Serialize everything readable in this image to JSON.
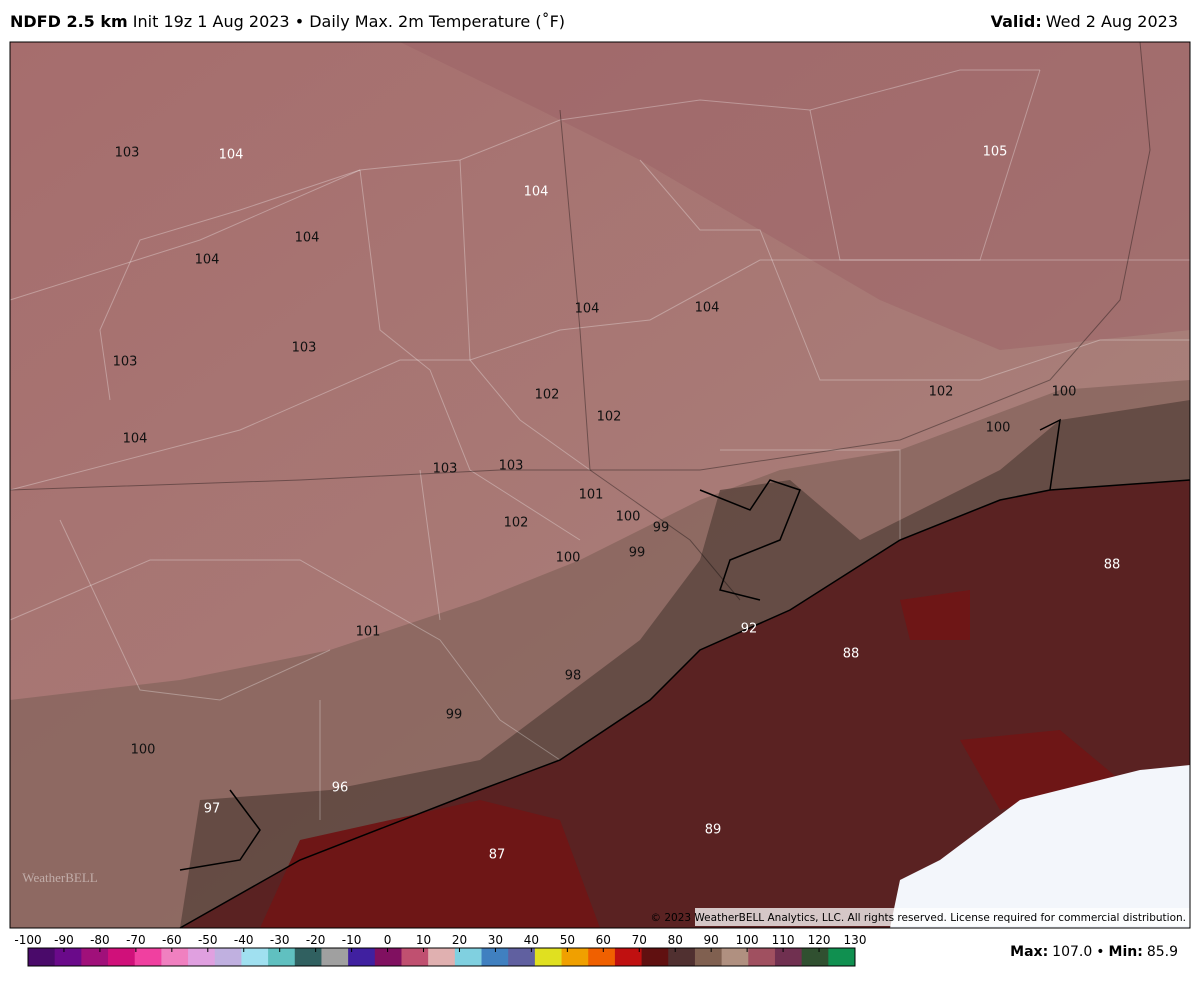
{
  "header": {
    "model": "NDFD 2.5 km",
    "description": "Init 19z 1 Aug 2023 • Daily Max. 2m Temperature (˚F)",
    "valid_label": "Valid:",
    "valid_date": "Wed 2 Aug 2023"
  },
  "map_labels": [
    103,
    104,
    104,
    105,
    104,
    104,
    104,
    104,
    103,
    103,
    102,
    102,
    100,
    102,
    100,
    104,
    103,
    103,
    101,
    100,
    99,
    102,
    99,
    100,
    88,
    92,
    101,
    88,
    98,
    99,
    100,
    96,
    97,
    89,
    87
  ],
  "copyright": "© 2023 WeatherBELL Analytics, LLC. All rights reserved. License required for commercial distribution.",
  "logo": "WeatherBELL",
  "colorbar": {
    "ticks": [
      -100,
      -90,
      -80,
      -70,
      -60,
      -50,
      -40,
      -30,
      -20,
      -10,
      0,
      10,
      20,
      30,
      40,
      50,
      60,
      70,
      80,
      90,
      100,
      110,
      120,
      130
    ]
  },
  "stats": {
    "max_label": "Max:",
    "max": "107.0",
    "separator": "•",
    "min_label": "Min:",
    "min": "85.9"
  }
}
